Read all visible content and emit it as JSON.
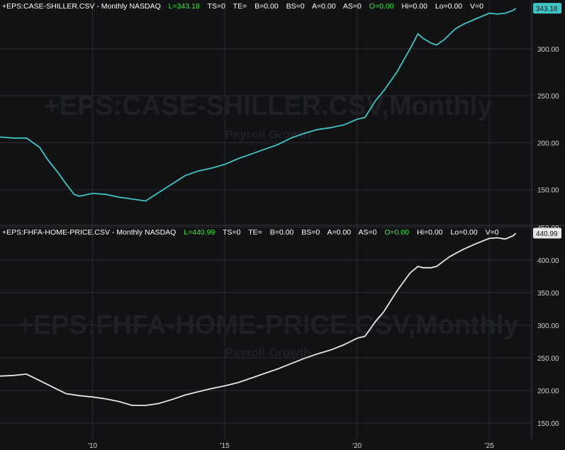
{
  "theme": {
    "background": "#111214",
    "grid": "#2a2c30",
    "axis_text": "#d0d0d0",
    "green": "#33ee33",
    "watermark": "#1e2025"
  },
  "chart_data": [
    {
      "type": "line",
      "header": {
        "symbol": "+EPS:CASE-SHILLER.CSV - Monthly  NASDAQ",
        "last": "L=343.18",
        "ts": "TS=0",
        "te": "TE=",
        "b": "B=0.00",
        "bs": "BS=0",
        "a": "A=0.00",
        "as": "AS=0",
        "open": "O=0.00",
        "hi": "Hi=0.00",
        "lo": "Lo=0.00",
        "v": "V=0"
      },
      "watermark": "+EPS:CASE-SHILLER.CSV,Monthly",
      "watermark_sub": "Payroll Growth",
      "last_label": "343.18",
      "line_color": "#40c4c4",
      "ylim": [
        112,
        352
      ],
      "yticks": [
        150,
        200,
        250,
        300
      ],
      "ytick_labels": [
        "150.00",
        "200.00",
        "250.00",
        "300.00"
      ],
      "series": [
        {
          "x": [
            2006.5,
            2007.0,
            2007.5,
            2008.0,
            2008.3,
            2008.7,
            2009.0,
            2009.3,
            2009.5,
            2010.0,
            2010.5,
            2011.0,
            2011.5,
            2012.0,
            2012.5,
            2013.0,
            2013.5,
            2014.0,
            2014.5,
            2015.0,
            2015.5,
            2016.0,
            2016.5,
            2017.0,
            2017.5,
            2018.0,
            2018.5,
            2019.0,
            2019.5,
            2020.0,
            2020.3,
            2020.7,
            2021.0,
            2021.5,
            2022.0,
            2022.3,
            2022.5,
            2022.8,
            2023.0,
            2023.3,
            2023.7,
            2024.0,
            2024.5,
            2025.0,
            2025.3,
            2025.6,
            2025.9,
            2026.0
          ],
          "values": [
            206,
            205,
            205,
            195,
            182,
            168,
            156,
            145,
            143,
            146,
            145,
            142,
            140,
            138,
            147,
            156,
            165,
            170,
            173,
            177,
            183,
            188,
            193,
            198,
            205,
            210,
            214,
            216,
            219,
            225,
            227,
            245,
            255,
            275,
            300,
            316,
            311,
            306,
            304,
            310,
            321,
            326,
            332,
            338,
            337,
            338,
            341,
            343.18
          ]
        }
      ]
    },
    {
      "type": "line",
      "header": {
        "symbol": "+EPS:FHFA-HOME-PRICE.CSV - Monthly  NASDAQ",
        "last": "L=440.99",
        "ts": "TS=0",
        "te": "TE=",
        "b": "B=0.00",
        "bs": "BS=0",
        "a": "A=0.00",
        "as": "AS=0",
        "open": "O=0.00",
        "hi": "Hi=0.00",
        "lo": "Lo=0.00",
        "v": "V=0"
      },
      "watermark": "+EPS:FHFA-HOME-PRICE.CSV,Monthly",
      "watermark_sub": "Payroll Growth",
      "last_label": "440.99",
      "line_color": "#e6e6e6",
      "ylim": [
        125,
        453
      ],
      "yticks": [
        150,
        200,
        250,
        300,
        350,
        400,
        450
      ],
      "ytick_labels": [
        "150.00",
        "200.00",
        "250.00",
        "300.00",
        "350.00",
        "400.00",
        "450.00"
      ],
      "series": [
        {
          "x": [
            2006.5,
            2007.0,
            2007.5,
            2008.0,
            2008.5,
            2009.0,
            2009.5,
            2010.0,
            2010.5,
            2011.0,
            2011.5,
            2012.0,
            2012.5,
            2013.0,
            2013.5,
            2014.0,
            2014.5,
            2015.0,
            2015.5,
            2016.0,
            2016.5,
            2017.0,
            2017.5,
            2018.0,
            2018.5,
            2019.0,
            2019.5,
            2020.0,
            2020.3,
            2020.7,
            2021.0,
            2021.5,
            2022.0,
            2022.3,
            2022.5,
            2022.8,
            2023.0,
            2023.5,
            2024.0,
            2024.5,
            2025.0,
            2025.3,
            2025.6,
            2025.9,
            2026.0
          ],
          "values": [
            222,
            223,
            225,
            215,
            205,
            195,
            192,
            190,
            187,
            183,
            177,
            177,
            180,
            186,
            193,
            198,
            203,
            207,
            212,
            219,
            226,
            233,
            241,
            249,
            256,
            262,
            270,
            280,
            283,
            306,
            320,
            352,
            380,
            390,
            388,
            388,
            390,
            405,
            416,
            425,
            433,
            434,
            432,
            437,
            440.99
          ]
        }
      ]
    }
  ],
  "x_axis": {
    "ticks": [
      2010,
      2015,
      2020,
      2025
    ],
    "tick_labels": [
      "'10",
      "'15",
      "'20",
      "'25"
    ],
    "xlim": [
      2006.5,
      2026.6
    ]
  }
}
